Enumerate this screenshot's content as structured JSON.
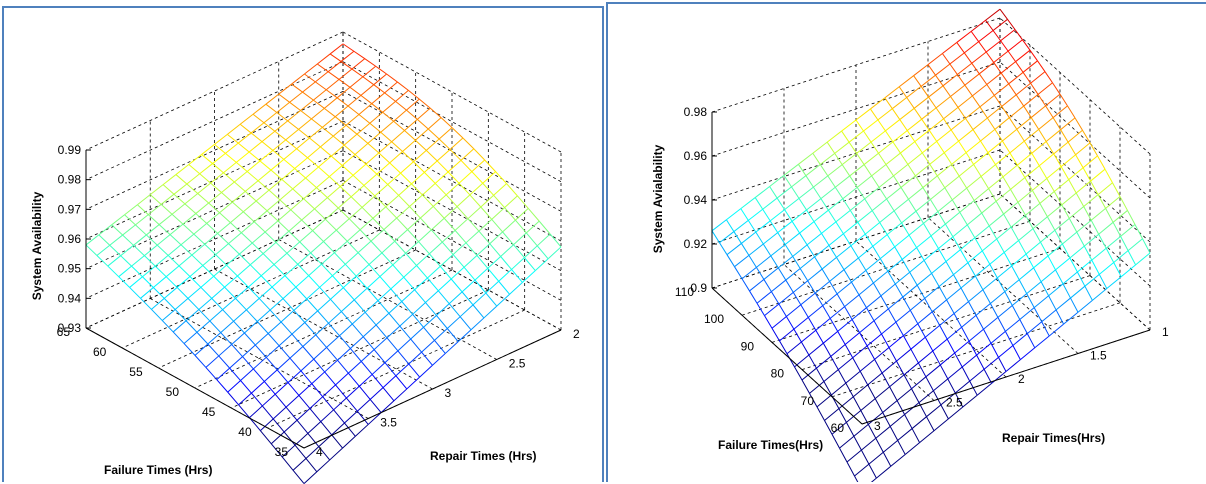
{
  "chart_data": [
    {
      "type": "surface",
      "xlabel": "Failure Times (Hrs)",
      "ylabel": "Repair Times (Hrs)",
      "zlabel": "System Availability",
      "x_ticks": [
        "35",
        "40",
        "45",
        "50",
        "55",
        "60",
        "65"
      ],
      "y_ticks": [
        "2",
        "2.5",
        "3",
        "3.5",
        "4"
      ],
      "z_ticks": [
        "0.93",
        "0.94",
        "0.95",
        "0.96",
        "0.97",
        "0.98",
        "0.99"
      ],
      "xlim": [
        35,
        65
      ],
      "ylim": [
        2,
        4
      ],
      "zlim": [
        0.93,
        0.99
      ],
      "grid": true,
      "colormap": "jet",
      "surface_corners": [
        {
          "failure": 35,
          "repair": 4,
          "availability": 0.918
        },
        {
          "failure": 35,
          "repair": 2,
          "availability": 0.958
        },
        {
          "failure": 65,
          "repair": 4,
          "availability": 0.958
        },
        {
          "failure": 65,
          "repair": 2,
          "availability": 0.986
        }
      ]
    },
    {
      "type": "surface",
      "xlabel": "Failure Times(Hrs)",
      "ylabel": "Repair Times(Hrs)",
      "zlabel": "System Avialability",
      "x_ticks": [
        "60",
        "70",
        "80",
        "90",
        "100",
        "110"
      ],
      "y_ticks": [
        "1",
        "1.5",
        "2",
        "2.5",
        "3"
      ],
      "z_ticks": [
        "0.9",
        "0.92",
        "0.94",
        "0.96",
        "0.98"
      ],
      "xlim": [
        60,
        110
      ],
      "ylim": [
        1,
        3
      ],
      "zlim": [
        0.9,
        0.98
      ],
      "grid": true,
      "colormap": "jet",
      "surface_corners": [
        {
          "failure": 60,
          "repair": 3,
          "availability": 0.87
        },
        {
          "failure": 60,
          "repair": 1,
          "availability": 0.935
        },
        {
          "failure": 110,
          "repair": 3,
          "availability": 0.926
        },
        {
          "failure": 110,
          "repair": 1,
          "availability": 0.984
        }
      ]
    }
  ]
}
